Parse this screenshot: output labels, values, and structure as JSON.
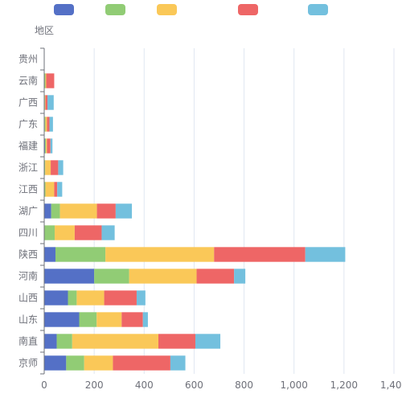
{
  "chart_data": {
    "type": "bar",
    "orientation": "horizontal",
    "stacked": true,
    "ylabel": "地区",
    "categories": [
      "京师",
      "南直",
      "山东",
      "山西",
      "河南",
      "陕西",
      "四川",
      "湖广",
      "江西",
      "浙江",
      "福建",
      "广东",
      "广西",
      "云南",
      "贵州"
    ],
    "series": [
      {
        "color": "#5470c6",
        "values": [
          88,
          50,
          140,
          95,
          200,
          45,
          0,
          28,
          0,
          0,
          3,
          2,
          2,
          0,
          0
        ]
      },
      {
        "color": "#91cc75",
        "values": [
          72,
          62,
          70,
          35,
          140,
          200,
          42,
          35,
          5,
          4,
          4,
          3,
          1,
          5,
          0
        ]
      },
      {
        "color": "#fac858",
        "values": [
          115,
          345,
          100,
          110,
          270,
          435,
          80,
          148,
          35,
          22,
          4,
          6,
          2,
          3,
          0
        ]
      },
      {
        "color": "#ee6666",
        "values": [
          230,
          148,
          85,
          130,
          150,
          365,
          108,
          75,
          12,
          30,
          14,
          10,
          8,
          32,
          0
        ]
      },
      {
        "color": "#73c0de",
        "values": [
          60,
          100,
          20,
          35,
          45,
          160,
          52,
          65,
          20,
          20,
          8,
          14,
          25,
          0,
          0
        ]
      }
    ],
    "xlim": [
      0,
      1400
    ],
    "xticks": [
      "0",
      "200",
      "400",
      "600",
      "800",
      "1,000",
      "1,200",
      "1,400"
    ],
    "grid": true,
    "legend": "top"
  }
}
